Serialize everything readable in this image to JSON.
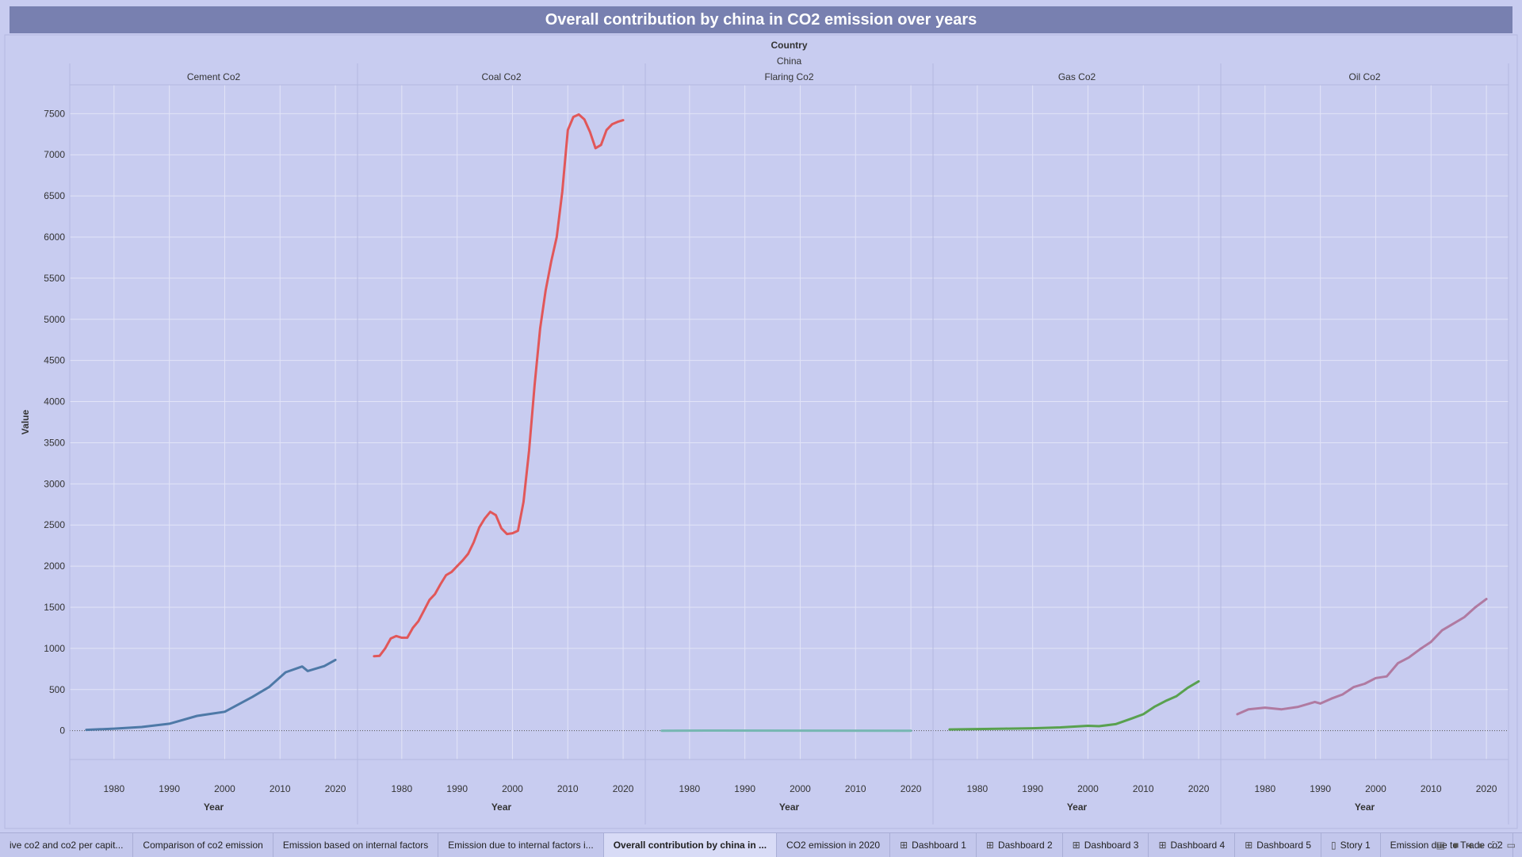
{
  "title": "Overall contribution by china in CO2 emission over years",
  "chart_data": {
    "type": "line",
    "header_label": "Country",
    "header_value": "China",
    "ylabel": "Value",
    "xlabel": "Year",
    "ylim": [
      -350,
      7850
    ],
    "xlim": [
      1972,
      2024
    ],
    "yticks": [
      0,
      500,
      1000,
      1500,
      2000,
      2500,
      3000,
      3500,
      4000,
      4500,
      5000,
      5500,
      6000,
      6500,
      7000,
      7500
    ],
    "xticks": [
      1980,
      1990,
      2000,
      2010,
      2020
    ],
    "grid": true,
    "panels": [
      {
        "name": "Cement Co2",
        "color": "#4e79a7",
        "x": [
          1975,
          1980,
          1985,
          1990,
          1995,
          2000,
          2005,
          2008,
          2011,
          2014,
          2015,
          2018,
          2020
        ],
        "values": [
          10,
          25,
          45,
          85,
          180,
          230,
          410,
          530,
          710,
          780,
          725,
          785,
          860
        ]
      },
      {
        "name": "Coal Co2",
        "color": "#e15759",
        "x": [
          1975,
          1976,
          1977,
          1978,
          1979,
          1980,
          1981,
          1982,
          1983,
          1984,
          1985,
          1986,
          1987,
          1988,
          1989,
          1990,
          1991,
          1992,
          1993,
          1994,
          1995,
          1996,
          1997,
          1998,
          1999,
          2000,
          2001,
          2002,
          2003,
          2004,
          2005,
          2006,
          2007,
          2008,
          2009,
          2010,
          2011,
          2012,
          2013,
          2014,
          2015,
          2016,
          2017,
          2018,
          2019,
          2020
        ],
        "values": [
          905,
          910,
          1000,
          1120,
          1150,
          1130,
          1130,
          1250,
          1330,
          1460,
          1590,
          1660,
          1780,
          1890,
          1930,
          2000,
          2070,
          2150,
          2290,
          2470,
          2580,
          2660,
          2620,
          2460,
          2390,
          2400,
          2430,
          2780,
          3400,
          4200,
          4890,
          5350,
          5700,
          6000,
          6550,
          7300,
          7460,
          7490,
          7430,
          7280,
          7080,
          7120,
          7300,
          7370,
          7400,
          7420
        ]
      },
      {
        "name": "Flaring Co2",
        "color": "#76b7b2",
        "x": [
          1975,
          1985,
          2000,
          2020
        ],
        "values": [
          0,
          2,
          1,
          0
        ]
      },
      {
        "name": "Gas Co2",
        "color": "#59a14f",
        "x": [
          1975,
          1980,
          1985,
          1990,
          1995,
          2000,
          2002,
          2005,
          2008,
          2010,
          2012,
          2014,
          2016,
          2018,
          2020
        ],
        "values": [
          15,
          20,
          25,
          30,
          40,
          60,
          55,
          80,
          150,
          200,
          290,
          360,
          420,
          520,
          600
        ]
      },
      {
        "name": "Oil Co2",
        "color": "#b07aa1",
        "x": [
          1975,
          1977,
          1980,
          1983,
          1986,
          1989,
          1990,
          1992,
          1994,
          1996,
          1998,
          2000,
          2002,
          2004,
          2006,
          2008,
          2010,
          2012,
          2014,
          2016,
          2018,
          2020
        ],
        "values": [
          200,
          260,
          280,
          260,
          290,
          350,
          330,
          390,
          440,
          530,
          570,
          640,
          660,
          820,
          890,
          990,
          1080,
          1220,
          1300,
          1380,
          1500,
          1600
        ]
      }
    ]
  },
  "tabs": [
    {
      "label": "ive co2 and co2 per capit...",
      "active": false,
      "icon": ""
    },
    {
      "label": "Comparison of co2 emission",
      "active": false,
      "icon": ""
    },
    {
      "label": "Emission based on internal factors",
      "active": false,
      "icon": ""
    },
    {
      "label": "Emission due to internal factors i...",
      "active": false,
      "icon": ""
    },
    {
      "label": "Overall contribution by china in ...",
      "active": true,
      "icon": ""
    },
    {
      "label": "CO2 emission in 2020",
      "active": false,
      "icon": ""
    },
    {
      "label": "Dashboard 1",
      "active": false,
      "icon": "⊞"
    },
    {
      "label": "Dashboard 2",
      "active": false,
      "icon": "⊞"
    },
    {
      "label": "Dashboard 3",
      "active": false,
      "icon": "⊞"
    },
    {
      "label": "Dashboard 4",
      "active": false,
      "icon": "⊞"
    },
    {
      "label": "Dashboard 5",
      "active": false,
      "icon": "⊞"
    },
    {
      "label": "Story 1",
      "active": false,
      "icon": "▯"
    },
    {
      "label": "Emission due to Trade co2",
      "active": false,
      "icon": ""
    }
  ]
}
